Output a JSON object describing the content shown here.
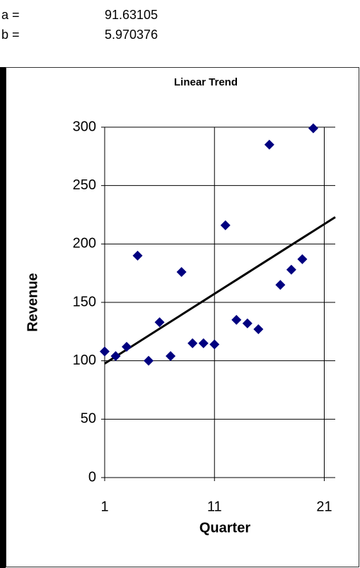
{
  "params": [
    {
      "label": "a =",
      "value": 91.63105
    },
    {
      "label": "b =",
      "value": 5.970376
    }
  ],
  "chart_data": {
    "type": "scatter",
    "title": "Linear Trend",
    "x_label": "Quarter",
    "y_label": "Revenue",
    "xlim": [
      1,
      22
    ],
    "xticks": [
      1,
      11,
      21
    ],
    "ylim": [
      0,
      300
    ],
    "yticks": [
      0,
      50,
      100,
      150,
      200,
      250,
      300
    ],
    "grid": true,
    "series": [
      {
        "mode": "markers",
        "color": "#000080",
        "x": [
          1,
          2,
          3,
          4,
          5,
          6,
          7,
          8,
          9,
          10,
          11,
          12,
          13,
          14,
          15,
          16,
          17,
          18,
          19,
          20
        ],
        "values": [
          108,
          104,
          112,
          190,
          100,
          133,
          104,
          176,
          115,
          115,
          114,
          216,
          135,
          132,
          127,
          285,
          165,
          178,
          187,
          299
        ]
      },
      {
        "mode": "line",
        "color": "#000000",
        "x": [
          1,
          2,
          3,
          4,
          5,
          6,
          7,
          8,
          9,
          10,
          11,
          12,
          13,
          14,
          15,
          16,
          17,
          18,
          19,
          20,
          21,
          22
        ],
        "values": [
          97.6,
          103.57,
          109.54,
          115.51,
          121.48,
          127.45,
          133.42,
          139.39,
          145.36,
          151.33,
          157.31,
          163.28,
          169.25,
          175.22,
          181.19,
          187.16,
          193.13,
          199.1,
          205.07,
          211.04,
          217.01,
          222.98
        ]
      }
    ]
  }
}
